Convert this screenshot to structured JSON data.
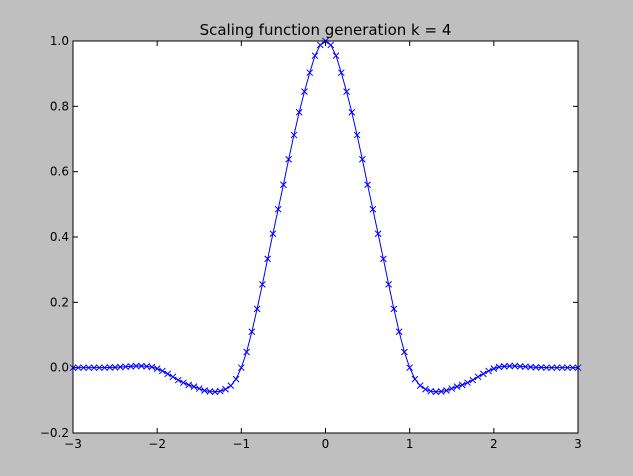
{
  "chart_data": {
    "type": "line",
    "title": "Scaling function generation k = 4",
    "xlabel": "",
    "ylabel": "",
    "xlim": [
      -3,
      3
    ],
    "ylim": [
      -0.2,
      1.0
    ],
    "xticks": [
      -3,
      -2,
      -1,
      0,
      1,
      2,
      3
    ],
    "xtick_labels": [
      "−3",
      "−2",
      "−1",
      "0",
      "1",
      "2",
      "3"
    ],
    "yticks": [
      -0.2,
      0.0,
      0.2,
      0.4,
      0.6,
      0.8,
      1.0
    ],
    "ytick_labels": [
      "−0.2",
      "0.0",
      "0.2",
      "0.4",
      "0.6",
      "0.8",
      "1.0"
    ],
    "grid": false,
    "legend": "none",
    "marker": "x",
    "series": [
      {
        "color": "#0000ff",
        "x": [
          -3.0,
          -2.9375,
          -2.875,
          -2.8125,
          -2.75,
          -2.6875,
          -2.625,
          -2.5625,
          -2.5,
          -2.4375,
          -2.375,
          -2.3125,
          -2.25,
          -2.1875,
          -2.125,
          -2.0625,
          -2.0,
          -1.9375,
          -1.875,
          -1.8125,
          -1.75,
          -1.6875,
          -1.625,
          -1.5625,
          -1.5,
          -1.4375,
          -1.375,
          -1.3125,
          -1.25,
          -1.1875,
          -1.125,
          -1.0625,
          -1.0,
          -0.9375,
          -0.875,
          -0.8125,
          -0.75,
          -0.6875,
          -0.625,
          -0.5625,
          -0.5,
          -0.4375,
          -0.375,
          -0.3125,
          -0.25,
          -0.1875,
          -0.125,
          -0.0625,
          0.0,
          0.0625,
          0.125,
          0.1875,
          0.25,
          0.3125,
          0.375,
          0.4375,
          0.5,
          0.5625,
          0.625,
          0.6875,
          0.75,
          0.8125,
          0.875,
          0.9375,
          1.0,
          1.0625,
          1.125,
          1.1875,
          1.25,
          1.3125,
          1.375,
          1.4375,
          1.5,
          1.5625,
          1.625,
          1.6875,
          1.75,
          1.8125,
          1.875,
          1.9375,
          2.0,
          2.0625,
          2.125,
          2.1875,
          2.25,
          2.3125,
          2.375,
          2.4375,
          2.5,
          2.5625,
          2.625,
          2.6875,
          2.75,
          2.8125,
          2.875,
          2.9375,
          3.0
        ],
        "y": [
          0.0,
          0.0,
          0.0,
          0.0,
          0.0,
          0.0,
          0.0,
          0.001,
          0.001,
          0.002,
          0.003,
          0.004,
          0.005,
          0.005,
          0.004,
          0.002,
          -0.003,
          -0.01,
          -0.019,
          -0.028,
          -0.038,
          -0.046,
          -0.053,
          -0.058,
          -0.064,
          -0.07,
          -0.073,
          -0.074,
          -0.072,
          -0.066,
          -0.055,
          -0.035,
          0.0,
          0.048,
          0.11,
          0.18,
          0.255,
          0.333,
          0.41,
          0.485,
          0.56,
          0.638,
          0.712,
          0.782,
          0.845,
          0.903,
          0.955,
          0.988,
          1.0,
          0.988,
          0.955,
          0.903,
          0.845,
          0.782,
          0.712,
          0.638,
          0.56,
          0.485,
          0.41,
          0.333,
          0.255,
          0.18,
          0.11,
          0.048,
          0.0,
          -0.035,
          -0.055,
          -0.066,
          -0.072,
          -0.074,
          -0.073,
          -0.07,
          -0.064,
          -0.058,
          -0.053,
          -0.046,
          -0.038,
          -0.028,
          -0.019,
          -0.01,
          -0.003,
          0.002,
          0.004,
          0.005,
          0.005,
          0.004,
          0.003,
          0.002,
          0.001,
          0.001,
          0.0,
          0.0,
          0.0,
          0.0,
          0.0,
          0.0,
          0.0
        ]
      }
    ]
  }
}
